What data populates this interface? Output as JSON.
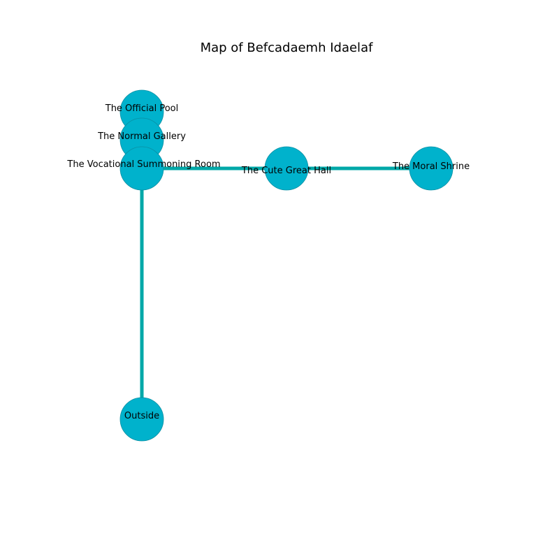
{
  "title": "Map of Befcadaemh Idaelaf",
  "colors": {
    "node_fill": "#00b2cc",
    "node_stroke": "#0a8fa3",
    "edge": "#00a8a8",
    "text": "#000000",
    "background": "#ffffff"
  },
  "rooms": [
    {
      "id": "official_pool",
      "label": "The Official Pool"
    },
    {
      "id": "normal_gallery",
      "label": "The Normal Gallery"
    },
    {
      "id": "vocational_summoning_room",
      "label": "The Vocational Summoning Room"
    },
    {
      "id": "cute_great_hall",
      "label": "The Cute Great Hall"
    },
    {
      "id": "moral_shrine",
      "label": "The Moral Shrine"
    },
    {
      "id": "outside",
      "label": "Outside"
    }
  ],
  "connections": [
    {
      "from": "vocational_summoning_room",
      "to": "cute_great_hall"
    },
    {
      "from": "cute_great_hall",
      "to": "moral_shrine"
    },
    {
      "from": "vocational_summoning_room",
      "to": "outside"
    }
  ]
}
